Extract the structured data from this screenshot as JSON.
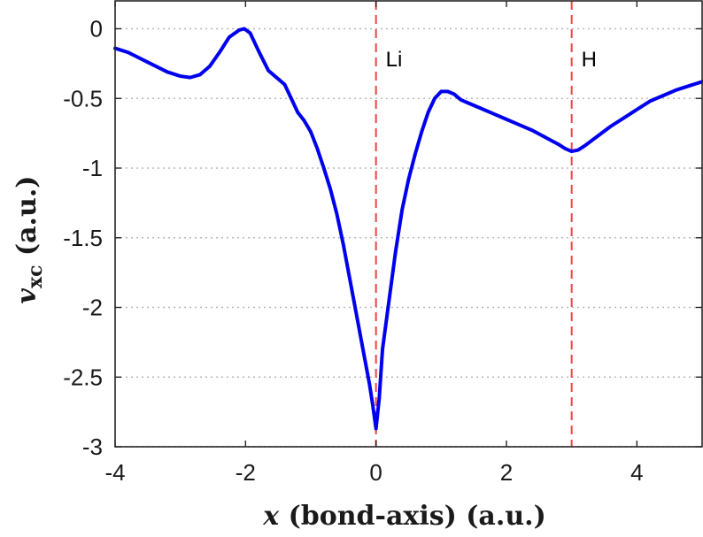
{
  "chart_data": {
    "type": "line",
    "xlabel": {
      "symbol": "x",
      "rest": " (bond-axis) (a.u.)"
    },
    "ylabel": {
      "symbol": "v",
      "subscript": "xc",
      "rest": " (a.u.)"
    },
    "xlim": [
      -4,
      5
    ],
    "ylim": [
      -3,
      0.2
    ],
    "x_ticks": [
      -4,
      -2,
      0,
      2,
      4
    ],
    "x_tick_labels": [
      "-4",
      "-2",
      "0",
      "2",
      "4"
    ],
    "y_ticks": [
      0,
      -0.5,
      -1,
      -1.5,
      -2,
      -2.5,
      -3
    ],
    "y_tick_labels": [
      "0",
      "-0.5",
      "-1",
      "-1.5",
      "-2",
      "-2.5",
      "-3"
    ],
    "grid": "horizontal dotted",
    "line_color": "#0000ee",
    "marker_color": "#ee4444",
    "annotations": [
      {
        "x": 0,
        "label": "Li"
      },
      {
        "x": 3,
        "label": "H"
      }
    ],
    "series": [
      {
        "x": [
          -4.0,
          -3.8,
          -3.5,
          -3.2,
          -3.0,
          -2.85,
          -2.7,
          -2.55,
          -2.4,
          -2.25,
          -2.1,
          -2.02,
          -1.93,
          -1.8,
          -1.65,
          -1.55,
          -1.4,
          -1.3,
          -1.2,
          -1.1,
          -1.0,
          -0.9,
          -0.8,
          -0.7,
          -0.6,
          -0.5,
          -0.4,
          -0.3,
          -0.2,
          -0.1,
          -0.05,
          0.0,
          0.05,
          0.1,
          0.2,
          0.3,
          0.4,
          0.5,
          0.6,
          0.7,
          0.8,
          0.9,
          1.0,
          1.1,
          1.2,
          1.3,
          1.4,
          1.5,
          1.6,
          1.8,
          2.0,
          2.2,
          2.4,
          2.6,
          2.8,
          2.9,
          3.0,
          3.1,
          3.2,
          3.4,
          3.6,
          3.8,
          4.0,
          4.2,
          4.4,
          4.6,
          4.8,
          5.0
        ],
        "y": [
          -0.14,
          -0.17,
          -0.24,
          -0.31,
          -0.34,
          -0.35,
          -0.33,
          -0.27,
          -0.17,
          -0.06,
          -0.01,
          0.0,
          -0.03,
          -0.16,
          -0.3,
          -0.34,
          -0.4,
          -0.5,
          -0.6,
          -0.66,
          -0.74,
          -0.86,
          -1.0,
          -1.15,
          -1.33,
          -1.55,
          -1.8,
          -2.05,
          -2.3,
          -2.55,
          -2.7,
          -2.87,
          -2.65,
          -2.3,
          -1.95,
          -1.6,
          -1.3,
          -1.08,
          -0.9,
          -0.74,
          -0.6,
          -0.5,
          -0.45,
          -0.45,
          -0.47,
          -0.51,
          -0.53,
          -0.55,
          -0.57,
          -0.61,
          -0.65,
          -0.69,
          -0.73,
          -0.78,
          -0.83,
          -0.86,
          -0.88,
          -0.87,
          -0.84,
          -0.77,
          -0.7,
          -0.64,
          -0.58,
          -0.52,
          -0.48,
          -0.44,
          -0.41,
          -0.38
        ]
      }
    ]
  }
}
